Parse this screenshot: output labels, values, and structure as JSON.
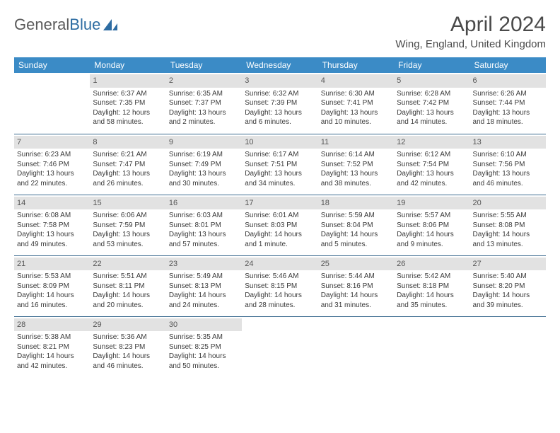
{
  "brand": {
    "name_a": "General",
    "name_b": "Blue"
  },
  "title": "April 2024",
  "location": "Wing, England, United Kingdom",
  "colors": {
    "header_bg": "#3b8bc6",
    "header_fg": "#ffffff",
    "daynum_bg": "#e2e2e2",
    "rule": "#3b6a8f",
    "text": "#3a3a3a",
    "brand_accent": "#2d6ca2"
  },
  "day_headers": [
    "Sunday",
    "Monday",
    "Tuesday",
    "Wednesday",
    "Thursday",
    "Friday",
    "Saturday"
  ],
  "weeks": [
    [
      {
        "n": "",
        "sr": "",
        "ss": "",
        "dl1": "",
        "dl2": ""
      },
      {
        "n": "1",
        "sr": "Sunrise: 6:37 AM",
        "ss": "Sunset: 7:35 PM",
        "dl1": "Daylight: 12 hours",
        "dl2": "and 58 minutes."
      },
      {
        "n": "2",
        "sr": "Sunrise: 6:35 AM",
        "ss": "Sunset: 7:37 PM",
        "dl1": "Daylight: 13 hours",
        "dl2": "and 2 minutes."
      },
      {
        "n": "3",
        "sr": "Sunrise: 6:32 AM",
        "ss": "Sunset: 7:39 PM",
        "dl1": "Daylight: 13 hours",
        "dl2": "and 6 minutes."
      },
      {
        "n": "4",
        "sr": "Sunrise: 6:30 AM",
        "ss": "Sunset: 7:41 PM",
        "dl1": "Daylight: 13 hours",
        "dl2": "and 10 minutes."
      },
      {
        "n": "5",
        "sr": "Sunrise: 6:28 AM",
        "ss": "Sunset: 7:42 PM",
        "dl1": "Daylight: 13 hours",
        "dl2": "and 14 minutes."
      },
      {
        "n": "6",
        "sr": "Sunrise: 6:26 AM",
        "ss": "Sunset: 7:44 PM",
        "dl1": "Daylight: 13 hours",
        "dl2": "and 18 minutes."
      }
    ],
    [
      {
        "n": "7",
        "sr": "Sunrise: 6:23 AM",
        "ss": "Sunset: 7:46 PM",
        "dl1": "Daylight: 13 hours",
        "dl2": "and 22 minutes."
      },
      {
        "n": "8",
        "sr": "Sunrise: 6:21 AM",
        "ss": "Sunset: 7:47 PM",
        "dl1": "Daylight: 13 hours",
        "dl2": "and 26 minutes."
      },
      {
        "n": "9",
        "sr": "Sunrise: 6:19 AM",
        "ss": "Sunset: 7:49 PM",
        "dl1": "Daylight: 13 hours",
        "dl2": "and 30 minutes."
      },
      {
        "n": "10",
        "sr": "Sunrise: 6:17 AM",
        "ss": "Sunset: 7:51 PM",
        "dl1": "Daylight: 13 hours",
        "dl2": "and 34 minutes."
      },
      {
        "n": "11",
        "sr": "Sunrise: 6:14 AM",
        "ss": "Sunset: 7:52 PM",
        "dl1": "Daylight: 13 hours",
        "dl2": "and 38 minutes."
      },
      {
        "n": "12",
        "sr": "Sunrise: 6:12 AM",
        "ss": "Sunset: 7:54 PM",
        "dl1": "Daylight: 13 hours",
        "dl2": "and 42 minutes."
      },
      {
        "n": "13",
        "sr": "Sunrise: 6:10 AM",
        "ss": "Sunset: 7:56 PM",
        "dl1": "Daylight: 13 hours",
        "dl2": "and 46 minutes."
      }
    ],
    [
      {
        "n": "14",
        "sr": "Sunrise: 6:08 AM",
        "ss": "Sunset: 7:58 PM",
        "dl1": "Daylight: 13 hours",
        "dl2": "and 49 minutes."
      },
      {
        "n": "15",
        "sr": "Sunrise: 6:06 AM",
        "ss": "Sunset: 7:59 PM",
        "dl1": "Daylight: 13 hours",
        "dl2": "and 53 minutes."
      },
      {
        "n": "16",
        "sr": "Sunrise: 6:03 AM",
        "ss": "Sunset: 8:01 PM",
        "dl1": "Daylight: 13 hours",
        "dl2": "and 57 minutes."
      },
      {
        "n": "17",
        "sr": "Sunrise: 6:01 AM",
        "ss": "Sunset: 8:03 PM",
        "dl1": "Daylight: 14 hours",
        "dl2": "and 1 minute."
      },
      {
        "n": "18",
        "sr": "Sunrise: 5:59 AM",
        "ss": "Sunset: 8:04 PM",
        "dl1": "Daylight: 14 hours",
        "dl2": "and 5 minutes."
      },
      {
        "n": "19",
        "sr": "Sunrise: 5:57 AM",
        "ss": "Sunset: 8:06 PM",
        "dl1": "Daylight: 14 hours",
        "dl2": "and 9 minutes."
      },
      {
        "n": "20",
        "sr": "Sunrise: 5:55 AM",
        "ss": "Sunset: 8:08 PM",
        "dl1": "Daylight: 14 hours",
        "dl2": "and 13 minutes."
      }
    ],
    [
      {
        "n": "21",
        "sr": "Sunrise: 5:53 AM",
        "ss": "Sunset: 8:09 PM",
        "dl1": "Daylight: 14 hours",
        "dl2": "and 16 minutes."
      },
      {
        "n": "22",
        "sr": "Sunrise: 5:51 AM",
        "ss": "Sunset: 8:11 PM",
        "dl1": "Daylight: 14 hours",
        "dl2": "and 20 minutes."
      },
      {
        "n": "23",
        "sr": "Sunrise: 5:49 AM",
        "ss": "Sunset: 8:13 PM",
        "dl1": "Daylight: 14 hours",
        "dl2": "and 24 minutes."
      },
      {
        "n": "24",
        "sr": "Sunrise: 5:46 AM",
        "ss": "Sunset: 8:15 PM",
        "dl1": "Daylight: 14 hours",
        "dl2": "and 28 minutes."
      },
      {
        "n": "25",
        "sr": "Sunrise: 5:44 AM",
        "ss": "Sunset: 8:16 PM",
        "dl1": "Daylight: 14 hours",
        "dl2": "and 31 minutes."
      },
      {
        "n": "26",
        "sr": "Sunrise: 5:42 AM",
        "ss": "Sunset: 8:18 PM",
        "dl1": "Daylight: 14 hours",
        "dl2": "and 35 minutes."
      },
      {
        "n": "27",
        "sr": "Sunrise: 5:40 AM",
        "ss": "Sunset: 8:20 PM",
        "dl1": "Daylight: 14 hours",
        "dl2": "and 39 minutes."
      }
    ],
    [
      {
        "n": "28",
        "sr": "Sunrise: 5:38 AM",
        "ss": "Sunset: 8:21 PM",
        "dl1": "Daylight: 14 hours",
        "dl2": "and 42 minutes."
      },
      {
        "n": "29",
        "sr": "Sunrise: 5:36 AM",
        "ss": "Sunset: 8:23 PM",
        "dl1": "Daylight: 14 hours",
        "dl2": "and 46 minutes."
      },
      {
        "n": "30",
        "sr": "Sunrise: 5:35 AM",
        "ss": "Sunset: 8:25 PM",
        "dl1": "Daylight: 14 hours",
        "dl2": "and 50 minutes."
      },
      {
        "n": "",
        "sr": "",
        "ss": "",
        "dl1": "",
        "dl2": ""
      },
      {
        "n": "",
        "sr": "",
        "ss": "",
        "dl1": "",
        "dl2": ""
      },
      {
        "n": "",
        "sr": "",
        "ss": "",
        "dl1": "",
        "dl2": ""
      },
      {
        "n": "",
        "sr": "",
        "ss": "",
        "dl1": "",
        "dl2": ""
      }
    ]
  ]
}
